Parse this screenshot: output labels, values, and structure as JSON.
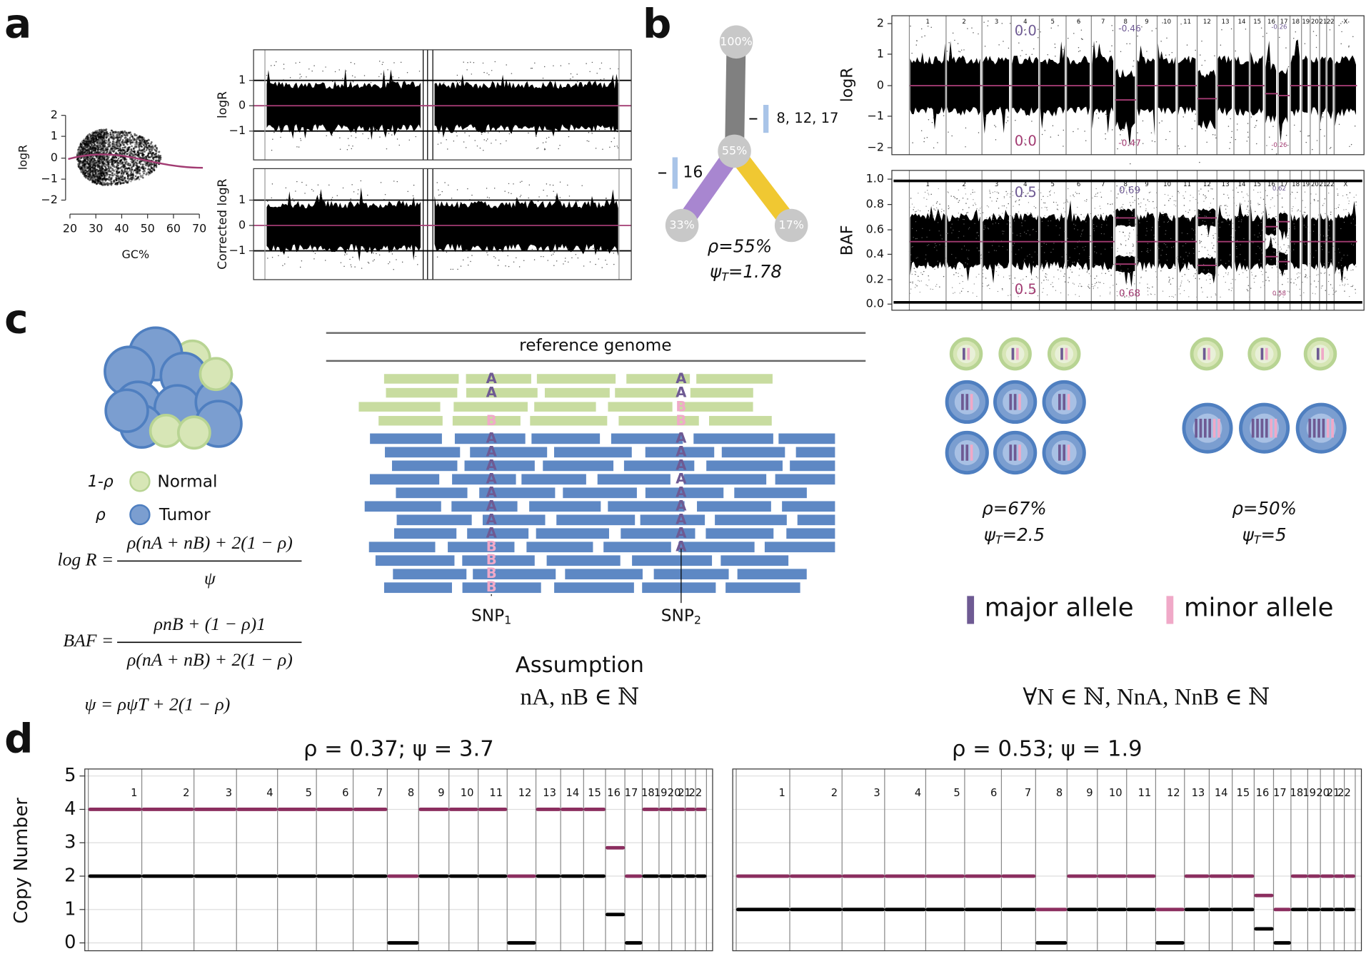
{
  "panel_labels": [
    "a",
    "b",
    "c",
    "d"
  ],
  "a": {
    "gc": {
      "ylabel": "logR",
      "xlabel": "GC%",
      "xticks": [
        "20",
        "30",
        "40",
        "50",
        "60",
        "70"
      ],
      "yticks": [
        "2",
        "1",
        "0",
        "−1",
        "−2"
      ]
    },
    "raw": {
      "ylabel": "logR",
      "yticks": [
        "1",
        "0",
        "−1"
      ]
    },
    "corrected": {
      "ylabel": "Corrected logR",
      "yticks": [
        "1",
        "0",
        "−1"
      ]
    }
  },
  "b": {
    "clones": [
      "100%",
      "55%",
      "33%",
      "17%"
    ],
    "events": [
      "8, 12, 17",
      "16"
    ],
    "rho": "ρ=55%",
    "psi": "ψ",
    "psi_sub": "T",
    "psi_value": "=1.78",
    "logr": {
      "ylabel": "logR",
      "yticks": [
        "2",
        "1",
        "0",
        "−1",
        "−2"
      ],
      "chromosomes": [
        "1",
        "2",
        "3",
        "4",
        "5",
        "6",
        "7",
        "8",
        "9",
        "10",
        "11",
        "12",
        "13",
        "14",
        "15",
        "16",
        "17",
        "18",
        "19",
        "20",
        "21",
        "22",
        "X"
      ],
      "annotations": [
        "0.0",
        "0.0",
        "-0.46",
        "-0.47",
        "-0.26",
        "-0.26"
      ]
    },
    "baf": {
      "ylabel": "BAF",
      "yticks": [
        "1.0",
        "0.8",
        "0.6",
        "0.4",
        "0.2",
        "0.0"
      ],
      "chromosomes": [
        "1",
        "2",
        "3",
        "4",
        "5",
        "6",
        "7",
        "8",
        "9",
        "10",
        "11",
        "12",
        "13",
        "14",
        "15",
        "16",
        "17",
        "18",
        "19",
        "20",
        "21",
        "22",
        "X"
      ],
      "annotations": [
        "0.5",
        "0.5",
        "0.69",
        "0.68",
        "0.62",
        "0.58"
      ]
    }
  },
  "c": {
    "reference": "reference genome",
    "alleles": [
      "A",
      "B"
    ],
    "snps": [
      {
        "name": "SNP",
        "sub": "1"
      },
      {
        "name": "SNP",
        "sub": "2"
      }
    ],
    "normal_fraction": "1-ρ",
    "normal": "Normal",
    "tumor_fraction": "ρ",
    "tumor": "Tumor",
    "formulas": [
      {
        "lhs": "log R =",
        "num": "ρ(nA + nB) + 2(1 − ρ)",
        "den": "ψ"
      },
      {
        "lhs": "BAF =",
        "num": "ρnB + (1 − ρ)1",
        "den": "ρ(nA + nB) + 2(1 − ρ)"
      }
    ],
    "psi_formula": "ψ = ρψT + 2(1 − ρ)",
    "assumption": "Assumption",
    "assumption_formula": "nA, nB ∈ ℕ",
    "scenarios": [
      {
        "rho": "ρ=67%",
        "psi": "ψ",
        "sub": "T",
        "value": "=2.5"
      },
      {
        "rho": "ρ=50%",
        "psi": "ψ",
        "sub": "T",
        "value": "=5"
      }
    ],
    "major": "major allele",
    "minor": "minor allele",
    "generalization": "∀N ∈ ℕ, NnA, NnB ∈ ℕ"
  },
  "d": {
    "ylabel": "Copy Number",
    "chromosomes": [
      "1",
      "2",
      "3",
      "4",
      "5",
      "6",
      "7",
      "8",
      "9",
      "10",
      "11",
      "12",
      "13",
      "14",
      "15",
      "16",
      "17",
      "18",
      "19",
      "20",
      "21",
      "22"
    ],
    "plots": [
      {
        "title": "ρ = 0.37; ψ = 3.7",
        "ylim": [
          0,
          5
        ],
        "yticks": [
          0,
          1,
          2,
          3,
          4,
          5
        ],
        "major": [
          4,
          4,
          4,
          4,
          4,
          4,
          4,
          2,
          4,
          4,
          4,
          2,
          4,
          4,
          4,
          2.85,
          2,
          4,
          4,
          4,
          4,
          4
        ],
        "minor": [
          2,
          2,
          2,
          2,
          2,
          2,
          2,
          0,
          2,
          2,
          2,
          0,
          2,
          2,
          2,
          0.85,
          0,
          2,
          2,
          2,
          2,
          2
        ]
      },
      {
        "title": "ρ = 0.53; ψ = 1.9",
        "ylim": [
          0,
          5
        ],
        "yticks": [
          0,
          1,
          2,
          3,
          4,
          5
        ],
        "major": [
          2,
          2,
          2,
          2,
          2,
          2,
          2,
          1,
          2,
          2,
          2,
          1,
          2,
          2,
          2,
          1.42,
          1,
          2,
          2,
          2,
          2,
          2
        ],
        "minor": [
          1,
          1,
          1,
          1,
          1,
          1,
          1,
          0,
          1,
          1,
          1,
          0,
          1,
          1,
          1,
          0.42,
          0,
          1,
          1,
          1,
          1,
          1
        ]
      }
    ]
  }
}
